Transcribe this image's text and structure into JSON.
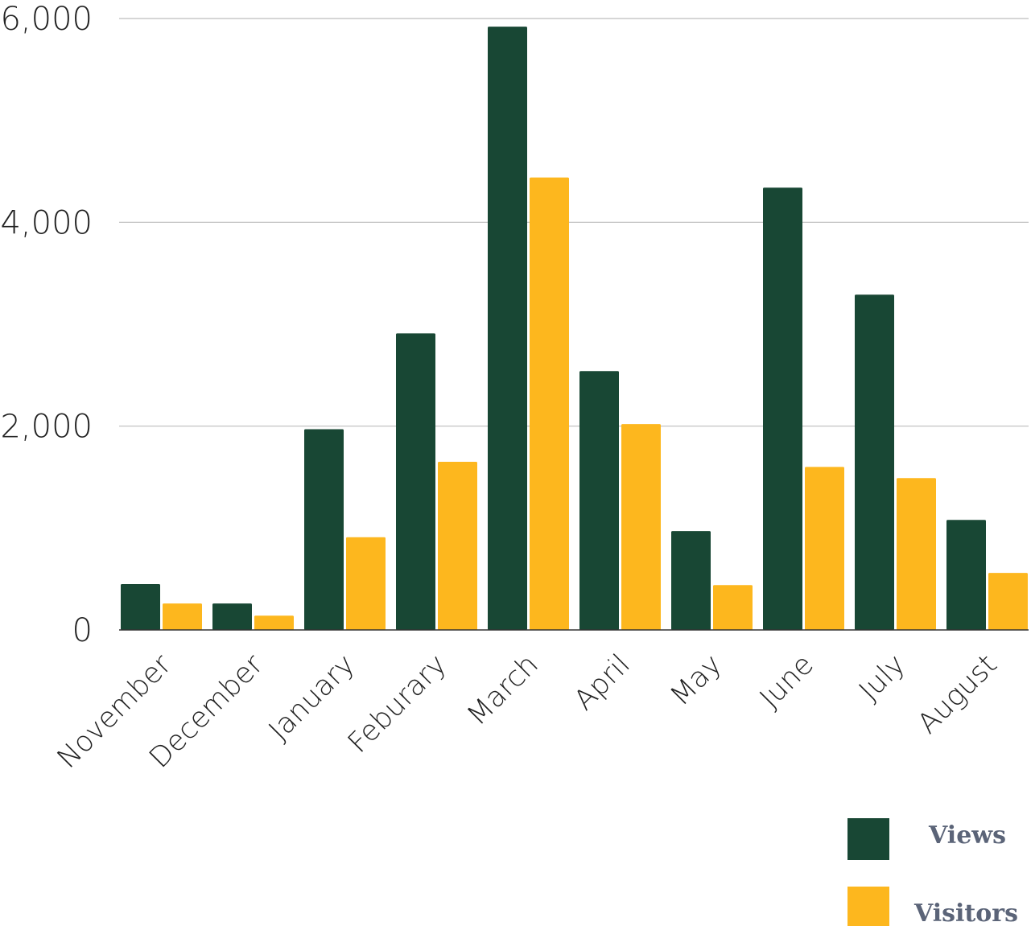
{
  "chart_data": {
    "type": "bar",
    "title": "",
    "xlabel": "",
    "ylabel": "",
    "categories": [
      "November",
      "December",
      "January",
      "Feburary",
      "March",
      "April",
      "May",
      "June",
      "July",
      "August"
    ],
    "series": [
      {
        "name": "Views",
        "color": "#184734",
        "values": [
          450,
          260,
          1970,
          2910,
          5920,
          2540,
          970,
          4340,
          3290,
          1080
        ]
      },
      {
        "name": "Visitors",
        "color": "#fdb71e",
        "values": [
          260,
          140,
          910,
          1650,
          4440,
          2020,
          440,
          1600,
          1490,
          560
        ]
      }
    ],
    "ylim": [
      0,
      6000
    ],
    "yticks": [
      "0",
      "2,000",
      "4,000",
      "6,000"
    ],
    "ytick_values": [
      0,
      2000,
      4000,
      6000
    ],
    "grid": true,
    "legend_position": "bottom-right"
  }
}
